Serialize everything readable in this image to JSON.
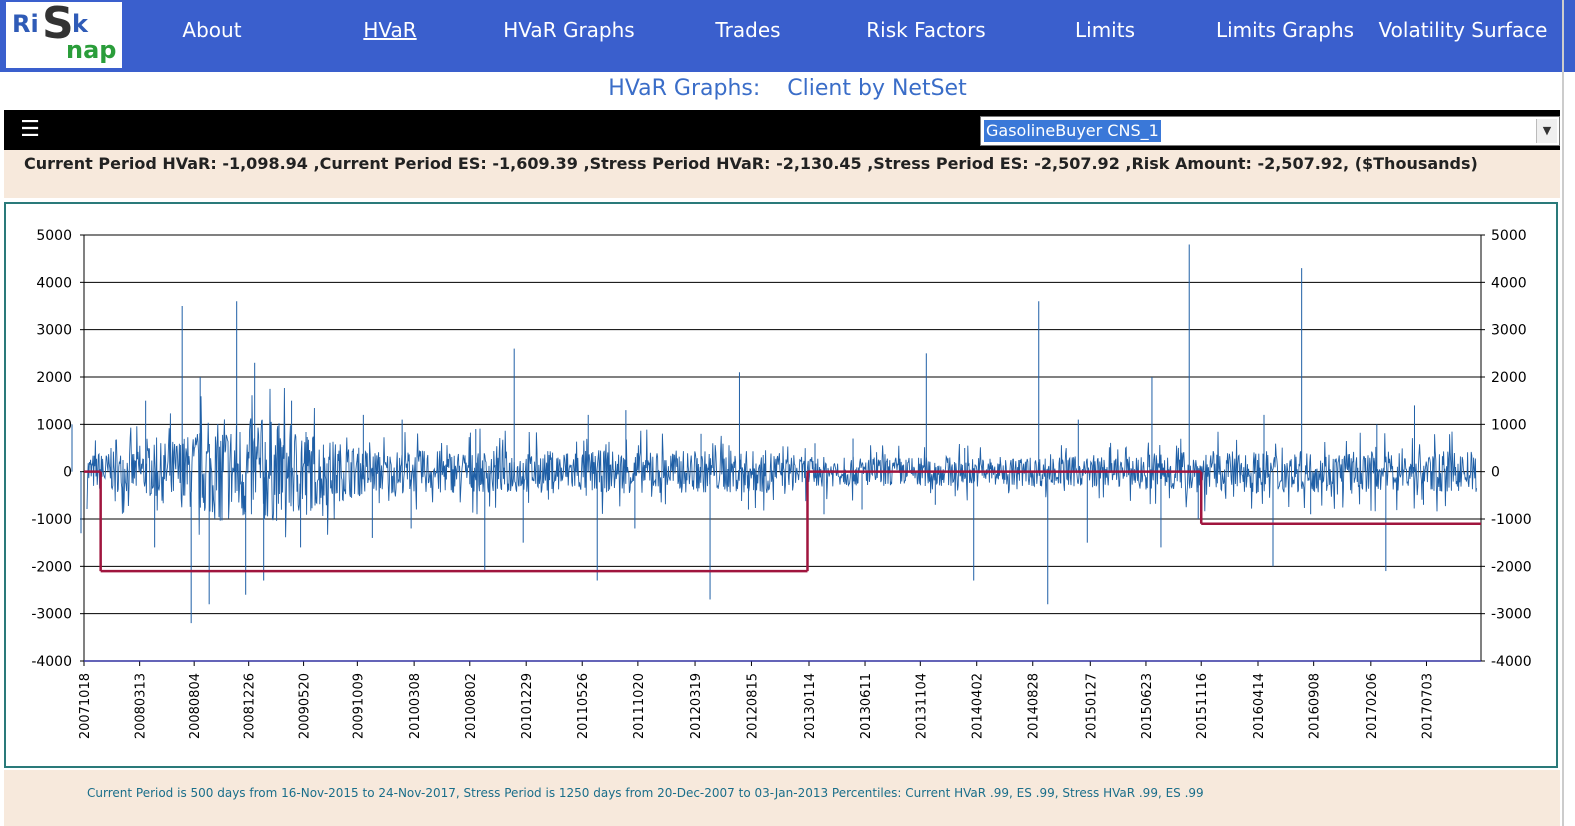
{
  "logo": {
    "ris": "Ri",
    "s": "S",
    "k": "k",
    "nap": "nap"
  },
  "nav": [
    {
      "label": "About",
      "active": false
    },
    {
      "label": "HVaR",
      "active": true
    },
    {
      "label": "HVaR Graphs",
      "active": false
    },
    {
      "label": "Trades",
      "active": false
    },
    {
      "label": "Risk Factors",
      "active": false
    },
    {
      "label": "Limits",
      "active": false
    },
    {
      "label": "Limits Graphs",
      "active": false
    },
    {
      "label": "Volatility Surface",
      "active": false
    }
  ],
  "page_title": {
    "prefix": "HVaR Graphs:",
    "subject": "Client by NetSet"
  },
  "menu_icon": "hamburger-icon",
  "netset_select": {
    "value": "GasolineBuyer CNS_1"
  },
  "metrics_text": "Current Period HVaR: -1,098.94  ,Current Period ES: -1,609.39  ,Stress Period HVaR: -2,130.45  ,Stress Period ES: -2,507.92  ,Risk Amount: -2,507.92, ($Thousands)",
  "footnote": "Current Period is 500 days from 16-Nov-2015 to 24-Nov-2017, Stress Period is 1250 days from 20-Dec-2007 to 03-Jan-2013   Percentiles:  Current HVaR .99,   ES .99,   Stress HVaR .99,   ES .99",
  "colors": {
    "nav_bg": "#3a5fcd",
    "pnl_series": "#1f5fa6",
    "hvar_line": "#a0153e",
    "panel_bg": "#f7e9dc"
  },
  "chart_data": {
    "type": "line",
    "ylim": [
      -4000,
      5000
    ],
    "y_ticks": [
      5000,
      4000,
      3000,
      2000,
      1000,
      0,
      -1000,
      -2000,
      -3000,
      -4000
    ],
    "x_tick_labels": [
      "20071018",
      "20080313",
      "20080804",
      "20081226",
      "20090520",
      "20091009",
      "20100308",
      "20100802",
      "20101229",
      "20110526",
      "20111020",
      "20120319",
      "20120815",
      "20130114",
      "20130611",
      "20131104",
      "20140402",
      "20140828",
      "20150127",
      "20150623",
      "20151116",
      "20160414",
      "20160908",
      "20170206",
      "20170703"
    ],
    "grid": true,
    "series": [
      {
        "type": "bars",
        "spikes": [
          {
            "date": "20071018",
            "value": 1000
          },
          {
            "date": "20071018",
            "value": -1300
          },
          {
            "date": "20080313",
            "value": 1500
          },
          {
            "date": "20080313",
            "value": -1600
          },
          {
            "date": "20080804",
            "value": 3500
          },
          {
            "date": "20080804",
            "value": -3200
          },
          {
            "date": "20080804",
            "value": 2000
          },
          {
            "date": "20080804",
            "value": -2800
          },
          {
            "date": "20081226",
            "value": 3600
          },
          {
            "date": "20081226",
            "value": -2600
          },
          {
            "date": "20081226",
            "value": 2300
          },
          {
            "date": "20081226",
            "value": -2300
          },
          {
            "date": "20090520",
            "value": 1500
          },
          {
            "date": "20090520",
            "value": -1600
          },
          {
            "date": "20091009",
            "value": 1200
          },
          {
            "date": "20091009",
            "value": -1400
          },
          {
            "date": "20100308",
            "value": 1100
          },
          {
            "date": "20100308",
            "value": -1200
          },
          {
            "date": "20100802",
            "value": 900
          },
          {
            "date": "20100802",
            "value": -2100
          },
          {
            "date": "20101229",
            "value": 2600
          },
          {
            "date": "20101229",
            "value": -1500
          },
          {
            "date": "20110526",
            "value": 1200
          },
          {
            "date": "20110526",
            "value": -2300
          },
          {
            "date": "20111020",
            "value": 1300
          },
          {
            "date": "20111020",
            "value": -1200
          },
          {
            "date": "20120319",
            "value": 800
          },
          {
            "date": "20120319",
            "value": -2700
          },
          {
            "date": "20120815",
            "value": 2100
          },
          {
            "date": "20120815",
            "value": -800
          },
          {
            "date": "20130114",
            "value": 600
          },
          {
            "date": "20130114",
            "value": -900
          },
          {
            "date": "20130611",
            "value": 700
          },
          {
            "date": "20130611",
            "value": -800
          },
          {
            "date": "20131104",
            "value": 2500
          },
          {
            "date": "20131104",
            "value": -700
          },
          {
            "date": "20140402",
            "value": 500
          },
          {
            "date": "20140402",
            "value": -2300
          },
          {
            "date": "20140828",
            "value": 3600
          },
          {
            "date": "20140828",
            "value": -2800
          },
          {
            "date": "20150127",
            "value": 1100
          },
          {
            "date": "20150127",
            "value": -1500
          },
          {
            "date": "20150623",
            "value": 2000
          },
          {
            "date": "20150623",
            "value": -1600
          },
          {
            "date": "20151116",
            "value": 4800
          },
          {
            "date": "20151116",
            "value": -1000
          },
          {
            "date": "20160414",
            "value": 1200
          },
          {
            "date": "20160414",
            "value": -2000
          },
          {
            "date": "20160908",
            "value": 4300
          },
          {
            "date": "20160908",
            "value": -900
          },
          {
            "date": "20170206",
            "value": 1000
          },
          {
            "date": "20170206",
            "value": -2100
          },
          {
            "date": "20170703",
            "value": 1400
          },
          {
            "date": "20170703",
            "value": -700
          }
        ]
      },
      {
        "type": "step",
        "steps": [
          {
            "from": "20071018",
            "to": "20071201",
            "value": 0
          },
          {
            "from": "20071201",
            "to": "20130110",
            "value": -2100
          },
          {
            "from": "20130110",
            "to": "20151116",
            "value": 0
          },
          {
            "from": "20151116",
            "to": "20171124",
            "value": -1100
          }
        ]
      }
    ]
  }
}
